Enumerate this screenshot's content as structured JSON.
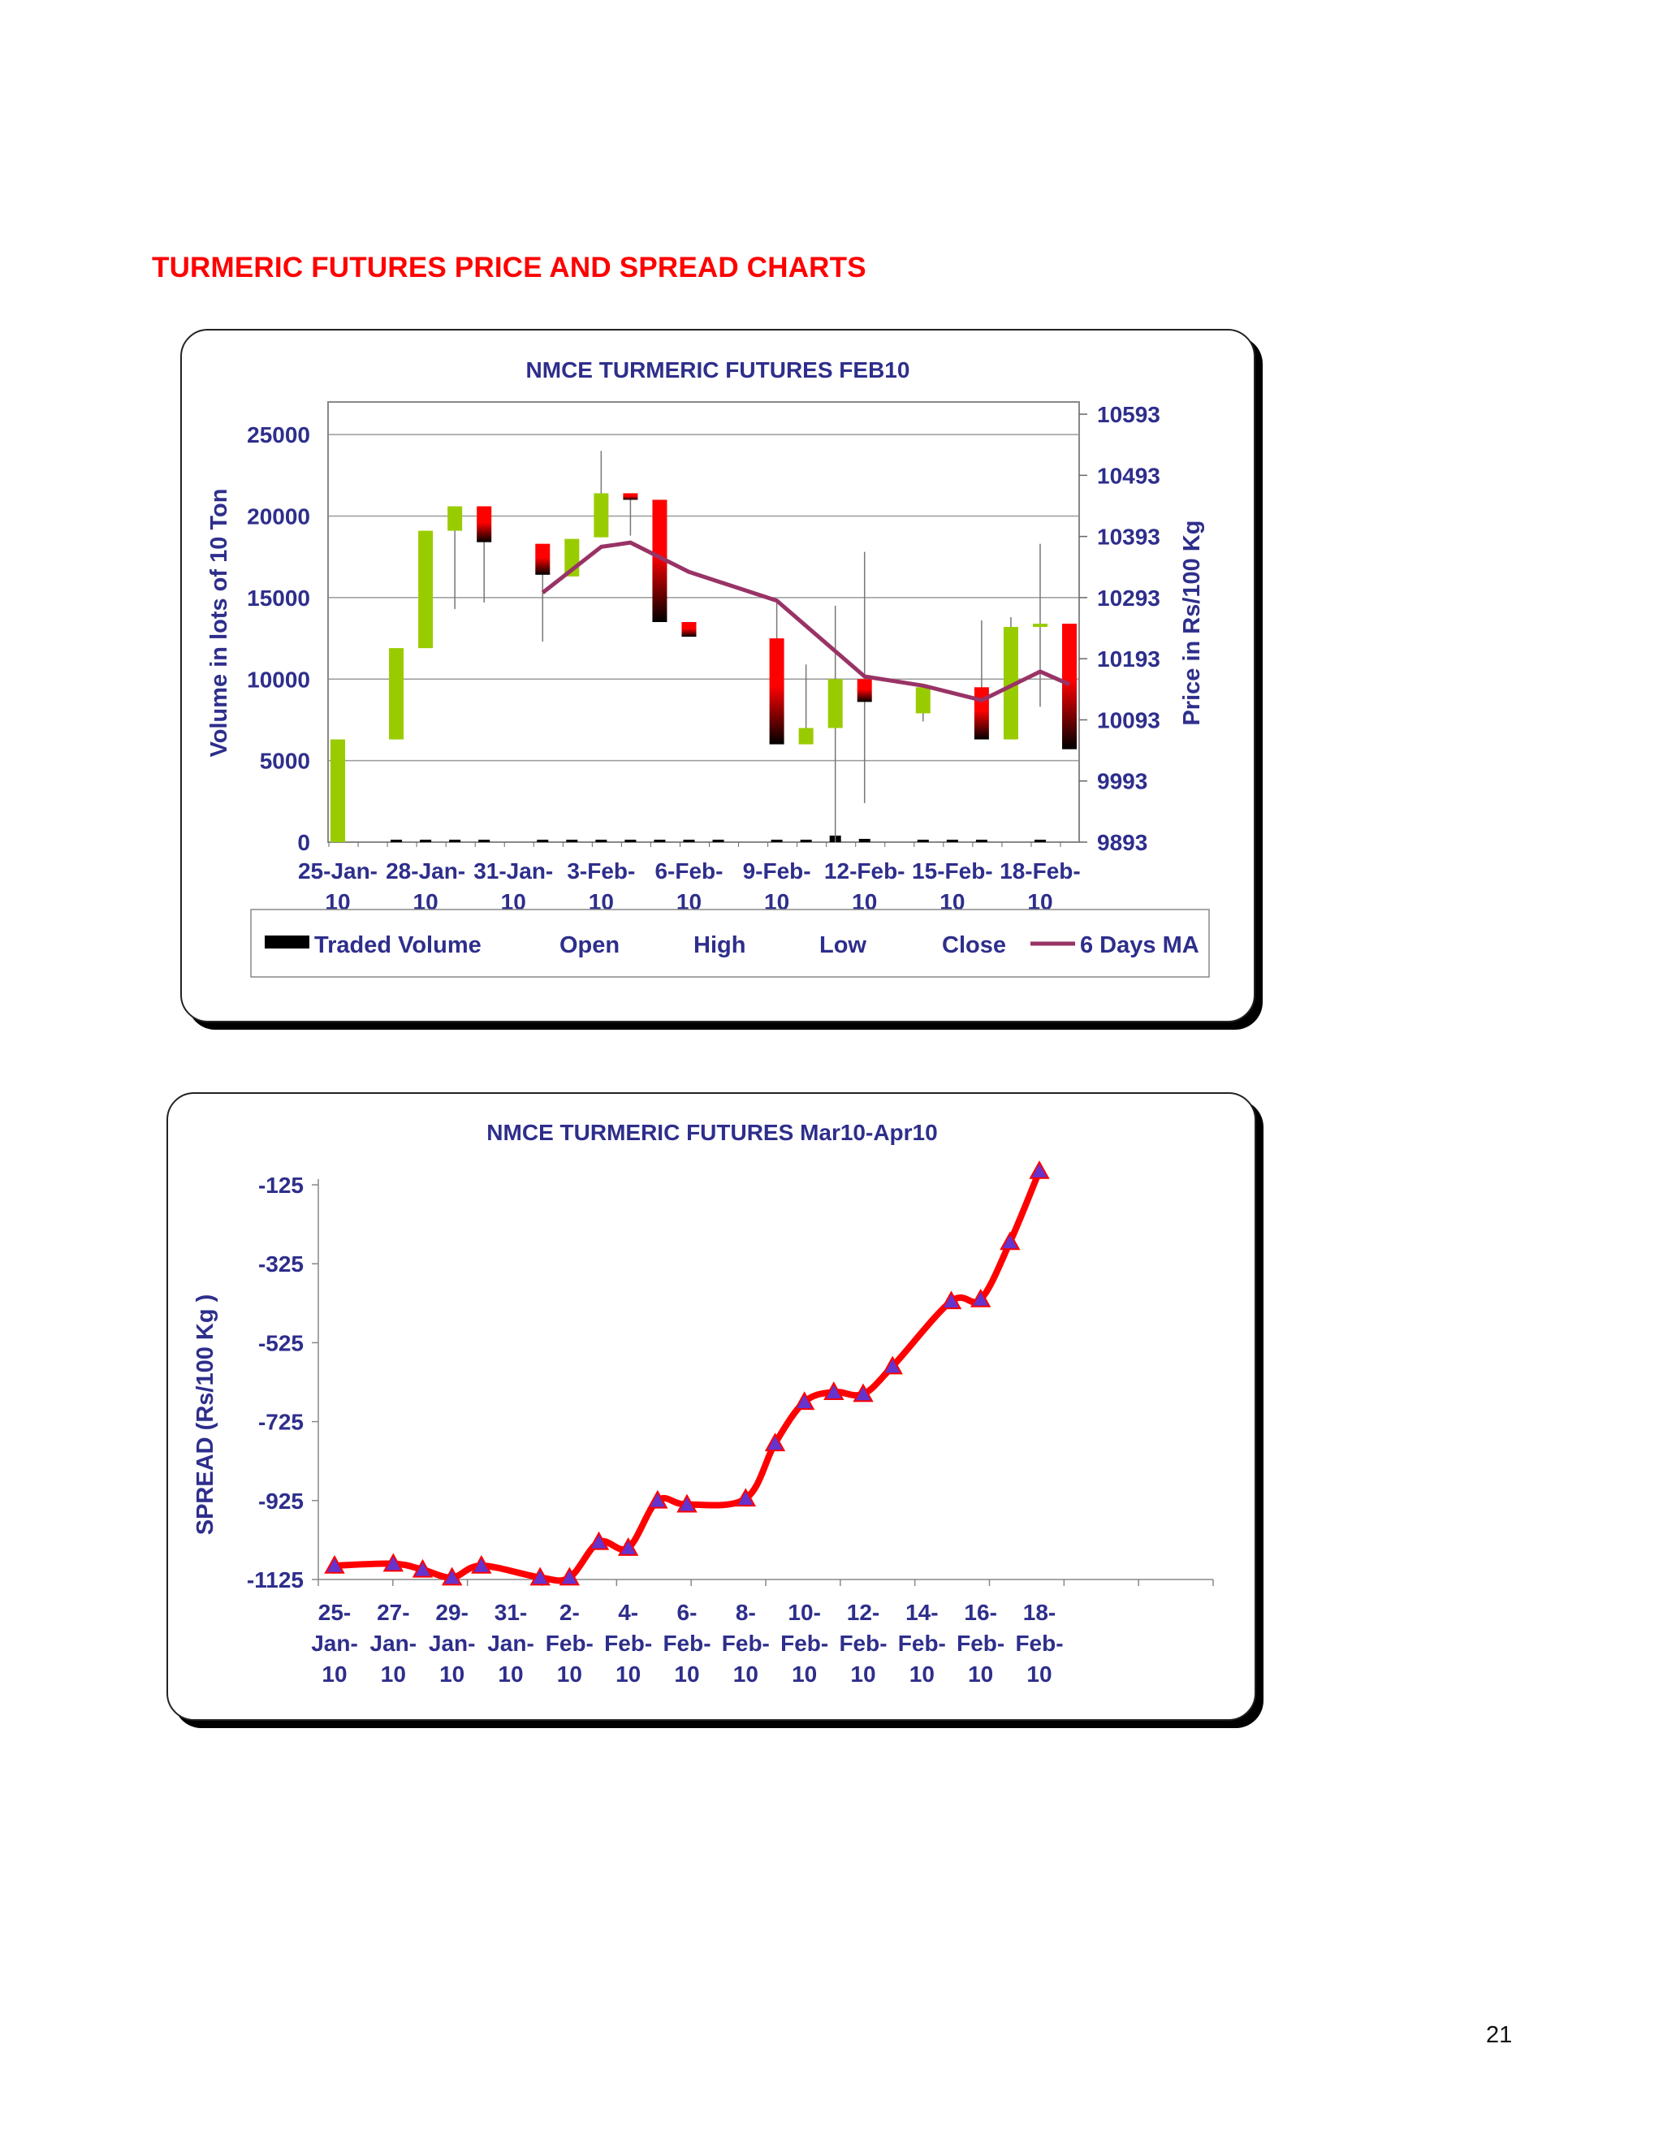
{
  "page": {
    "heading": "TURMERIC FUTURES PRICE AND SPREAD CHARTS",
    "page_number": "21"
  },
  "colors": {
    "up": "#99cc00",
    "down_top": "#ff0000",
    "down_bottom": "#000000",
    "ma": "#993366",
    "spread": "#ff0000",
    "marker": "#6633cc",
    "text": "#2e2e8c"
  },
  "chart_data": [
    {
      "type": "candlestick",
      "title": "NMCE TURMERIC FUTURES FEB10",
      "ylabel": "Volume in lots of 10 Ton",
      "y2label": "Price in Rs/100 Kg",
      "ylim": [
        0,
        27000
      ],
      "y2lim": [
        9893,
        10613
      ],
      "yticks": [
        "0",
        "5000",
        "10000",
        "15000",
        "20000",
        "25000"
      ],
      "y2ticks": [
        "9893",
        "9993",
        "10093",
        "10193",
        "10293",
        "10393",
        "10493",
        "10593"
      ],
      "xticks": [
        {
          "l1": "25-Jan-",
          "l2": "10",
          "i": 0
        },
        {
          "l1": "28-Jan-",
          "l2": "10",
          "i": 3
        },
        {
          "l1": "31-Jan-",
          "l2": "10",
          "i": 6
        },
        {
          "l1": "3-Feb-",
          "l2": "10",
          "i": 9
        },
        {
          "l1": "6-Feb-",
          "l2": "10",
          "i": 12
        },
        {
          "l1": "9-Feb-",
          "l2": "10",
          "i": 15
        },
        {
          "l1": "12-Feb-",
          "l2": "10",
          "i": 18
        },
        {
          "l1": "15-Feb-",
          "l2": "10",
          "i": 21
        },
        {
          "l1": "18-Feb-",
          "l2": "10",
          "i": 24
        }
      ],
      "ncat": 25,
      "legend": [
        "Traded Volume",
        "Open",
        "High",
        "Low",
        "Close",
        "6 Days MA"
      ],
      "volume": [
        null,
        null,
        80,
        80,
        80,
        80,
        null,
        80,
        80,
        80,
        80,
        80,
        80,
        40,
        null,
        80,
        60,
        400,
        200,
        null,
        40,
        40,
        40,
        null,
        40
      ],
      "candles": [
        {
          "i": 0,
          "open": 6300,
          "close": 0,
          "high": 6300,
          "low": 0,
          "up": true
        },
        {
          "i": 2,
          "open": 6300,
          "close": 11900,
          "high": 11900,
          "low": 6300,
          "up": true
        },
        {
          "i": 3,
          "open": 11900,
          "close": 19100,
          "high": 19100,
          "low": 11900,
          "up": true
        },
        {
          "i": 4,
          "open": 19100,
          "close": 20600,
          "high": 20600,
          "low": 14300,
          "up": true
        },
        {
          "i": 5,
          "open": 20600,
          "close": 18400,
          "high": 20600,
          "low": 14700,
          "up": false
        },
        {
          "i": 7,
          "open": 18300,
          "close": 16400,
          "high": 18300,
          "low": 12300,
          "up": false
        },
        {
          "i": 8,
          "open": 16300,
          "close": 18600,
          "high": 18600,
          "low": 16300,
          "up": true
        },
        {
          "i": 9,
          "open": 18700,
          "close": 21400,
          "high": 24000,
          "low": 18700,
          "up": true
        },
        {
          "i": 10,
          "open": 21400,
          "close": 21000,
          "high": 21400,
          "low": 18800,
          "up": false
        },
        {
          "i": 11,
          "open": 21000,
          "close": 13500,
          "high": 21000,
          "low": 13500,
          "up": false
        },
        {
          "i": 12,
          "open": 13500,
          "close": 12600,
          "high": 13500,
          "low": 12600,
          "up": false
        },
        {
          "i": 15,
          "open": 12500,
          "close": 6000,
          "high": 14700,
          "low": 6000,
          "up": false
        },
        {
          "i": 16,
          "open": 6000,
          "close": 7000,
          "high": 10900,
          "low": 6000,
          "up": true
        },
        {
          "i": 17,
          "open": 7000,
          "close": 10000,
          "high": 14500,
          "low": 0,
          "up": true
        },
        {
          "i": 18,
          "open": 10000,
          "close": 8600,
          "high": 17800,
          "low": 2400,
          "up": false
        },
        {
          "i": 20,
          "open": 7900,
          "close": 9500,
          "high": 9500,
          "low": 7400,
          "up": true
        },
        {
          "i": 22,
          "open": 9500,
          "close": 6300,
          "high": 13600,
          "low": 6300,
          "up": false
        },
        {
          "i": 23,
          "open": 6300,
          "close": 13200,
          "high": 13800,
          "low": 6300,
          "up": true
        },
        {
          "i": 24,
          "open": 13200,
          "close": 13400,
          "high": 18300,
          "low": 8300,
          "up": true
        },
        {
          "i": 25,
          "open": 13400,
          "close": 5700,
          "high": 13400,
          "low": 5700,
          "up": false
        }
      ],
      "ma": [
        {
          "i": 7,
          "v": 10301
        },
        {
          "i": 9,
          "v": 10376
        },
        {
          "i": 10,
          "v": 10383
        },
        {
          "i": 12,
          "v": 10335
        },
        {
          "i": 15,
          "v": 10288
        },
        {
          "i": 18,
          "v": 10164
        },
        {
          "i": 20,
          "v": 10149
        },
        {
          "i": 22,
          "v": 10125
        },
        {
          "i": 24,
          "v": 10172
        },
        {
          "i": 25,
          "v": 10151
        }
      ]
    },
    {
      "type": "line",
      "title": "NMCE TURMERIC FUTURES Mar10-Apr10",
      "ylabel": "SPREAD (Rs/100 Kg   )",
      "ylim": [
        -1125,
        -90
      ],
      "yticks": [
        "-125",
        "-325",
        "-525",
        "-725",
        "-925",
        "-1125"
      ],
      "ytick_values": [
        -125,
        -325,
        -525,
        -725,
        -925,
        -1125
      ],
      "ncat": 25,
      "xticks": [
        {
          "l1": "25-",
          "l2": "Jan-",
          "l3": "10",
          "i": 0
        },
        {
          "l1": "27-",
          "l2": "Jan-",
          "l3": "10",
          "i": 2
        },
        {
          "l1": "29-",
          "l2": "Jan-",
          "l3": "10",
          "i": 4
        },
        {
          "l1": "31-",
          "l2": "Jan-",
          "l3": "10",
          "i": 6
        },
        {
          "l1": "2-",
          "l2": "Feb-",
          "l3": "10",
          "i": 8
        },
        {
          "l1": "4-",
          "l2": "Feb-",
          "l3": "10",
          "i": 10
        },
        {
          "l1": "6-",
          "l2": "Feb-",
          "l3": "10",
          "i": 12
        },
        {
          "l1": "8-",
          "l2": "Feb-",
          "l3": "10",
          "i": 14
        },
        {
          "l1": "10-",
          "l2": "Feb-",
          "l3": "10",
          "i": 16
        },
        {
          "l1": "12-",
          "l2": "Feb-",
          "l3": "10",
          "i": 18
        },
        {
          "l1": "14-",
          "l2": "Feb-",
          "l3": "10",
          "i": 20
        },
        {
          "l1": "16-",
          "l2": "Feb-",
          "l3": "10",
          "i": 22
        },
        {
          "l1": "18-",
          "l2": "Feb-",
          "l3": "10",
          "i": 24
        }
      ],
      "points": [
        {
          "i": 0,
          "v": -1090
        },
        {
          "i": 2,
          "v": -1085
        },
        {
          "i": 3,
          "v": -1100
        },
        {
          "i": 4,
          "v": -1120
        },
        {
          "i": 5,
          "v": -1090
        },
        {
          "i": 7,
          "v": -1120
        },
        {
          "i": 8,
          "v": -1120
        },
        {
          "i": 9,
          "v": -1030
        },
        {
          "i": 10,
          "v": -1045
        },
        {
          "i": 11,
          "v": -925
        },
        {
          "i": 12,
          "v": -935
        },
        {
          "i": 14,
          "v": -920
        },
        {
          "i": 15,
          "v": -780
        },
        {
          "i": 16,
          "v": -675
        },
        {
          "i": 17,
          "v": -650
        },
        {
          "i": 18,
          "v": -655
        },
        {
          "i": 19,
          "v": -585
        },
        {
          "i": 21,
          "v": -420
        },
        {
          "i": 22,
          "v": -415
        },
        {
          "i": 23,
          "v": -270
        },
        {
          "i": 24,
          "v": -90
        }
      ]
    }
  ]
}
